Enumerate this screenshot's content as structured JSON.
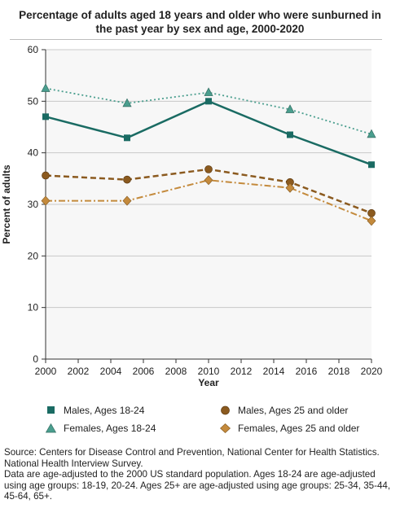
{
  "chart_data": {
    "type": "line",
    "title": "Percentage of adults aged 18 years and older who were sunburned in the past year by sex and age, 2000-2020",
    "xlabel": "Year",
    "ylabel": "Percent of adults",
    "x": [
      2000,
      2005,
      2010,
      2015,
      2020
    ],
    "xticks": [
      "2000",
      "2002",
      "2004",
      "2006",
      "2008",
      "2010",
      "2012",
      "2014",
      "2016",
      "2018",
      "2020"
    ],
    "yticks": [
      "0",
      "10",
      "20",
      "30",
      "40",
      "50",
      "60"
    ],
    "xlim": [
      2000,
      2020
    ],
    "ylim": [
      0,
      60
    ],
    "grid": true,
    "legend_position": "bottom",
    "series": [
      {
        "name": "Males, Ages 18-24",
        "values": [
          47.0,
          42.9,
          50.0,
          43.5,
          37.7
        ],
        "color": "#1a6b63",
        "marker": "square",
        "line": "solid"
      },
      {
        "name": "Females, Ages 18-24",
        "values": [
          52.5,
          49.6,
          51.7,
          48.4,
          43.6
        ],
        "color": "#4a9e8e",
        "marker": "triangle",
        "line": "dotted"
      },
      {
        "name": "Males, Ages 25 and older",
        "values": [
          35.6,
          34.8,
          36.8,
          34.3,
          28.3
        ],
        "color": "#8b5a1f",
        "marker": "circle",
        "line": "dashed"
      },
      {
        "name": "Females, Ages 25 and older",
        "values": [
          30.7,
          30.7,
          34.7,
          33.2,
          26.8
        ],
        "color": "#c48a3c",
        "marker": "diamond",
        "line": "dashdot"
      }
    ]
  },
  "source": {
    "line1": "Source: Centers for Disease Control and Prevention, National Center for Health Statistics. National Health Interview Survey.",
    "line2": "Data are age-adjusted to the 2000 US standard population. Ages 18-24 are age-adjusted using age groups: 18-19, 20-24. Ages 25+ are age-adjusted using age groups: 25-34, 35-44, 45-64, 65+."
  }
}
